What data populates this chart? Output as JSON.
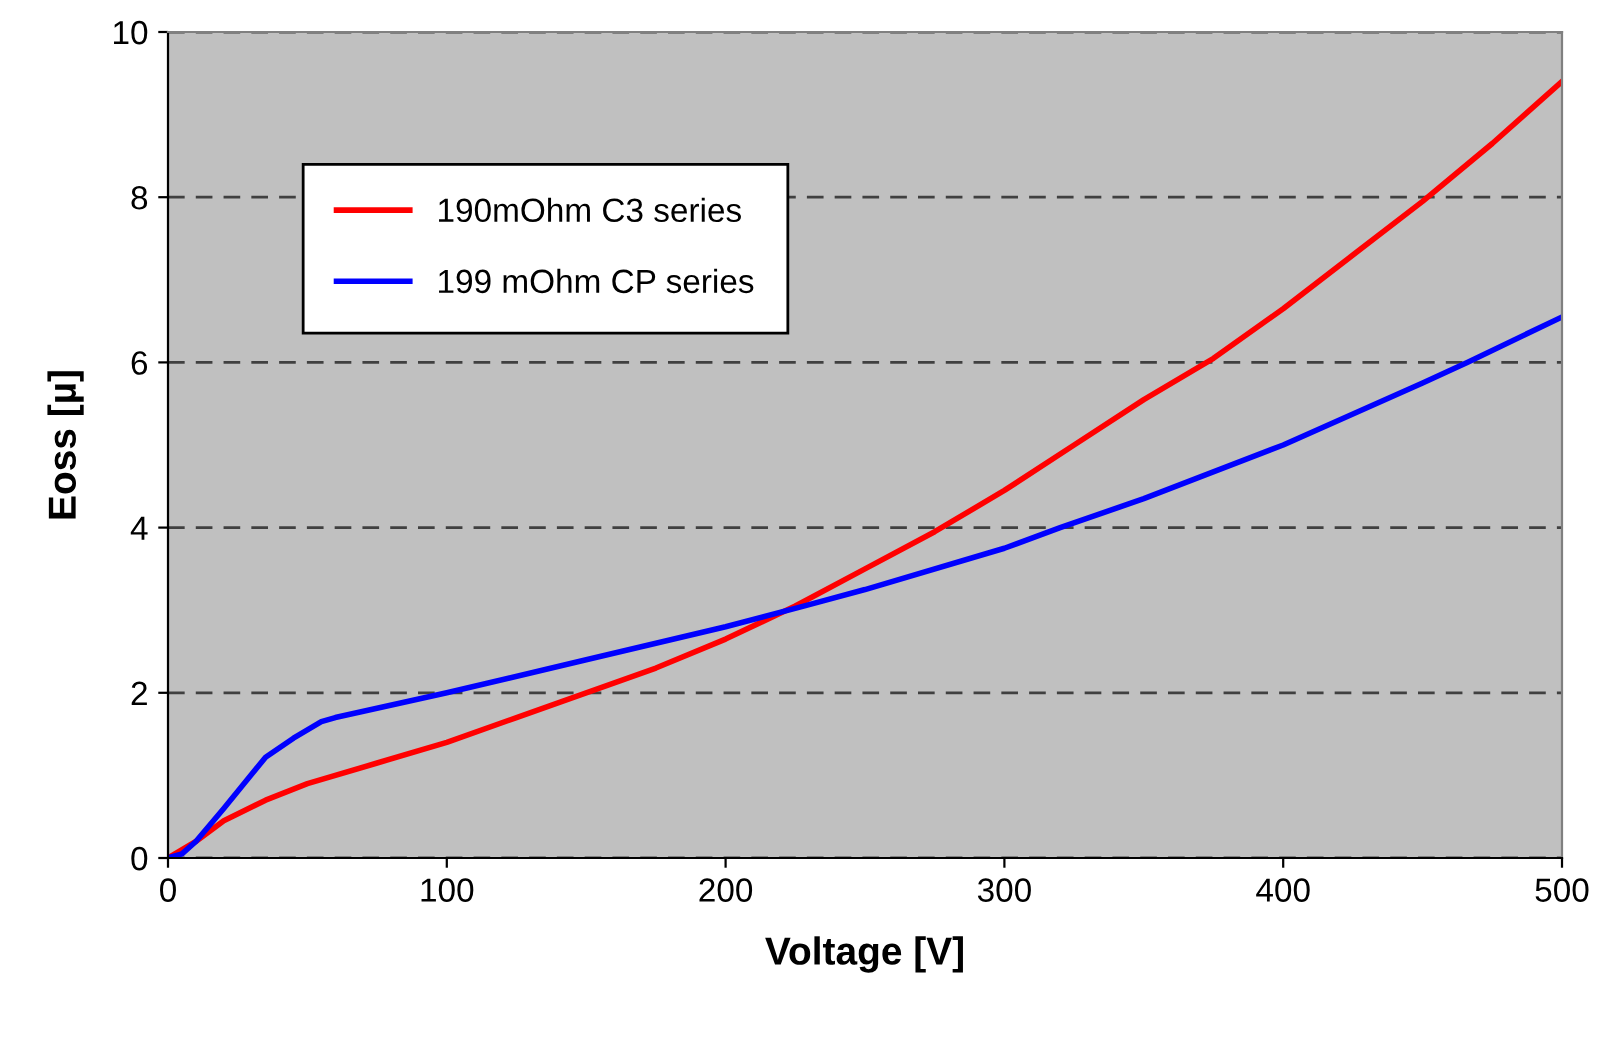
{
  "chart_data": {
    "type": "line",
    "xlabel": "Voltage [V]",
    "ylabel": "Eoss [µ]",
    "xlim": [
      0,
      500
    ],
    "ylim": [
      0,
      10
    ],
    "xticks": [
      0,
      100,
      200,
      300,
      400,
      500
    ],
    "yticks": [
      0,
      2,
      4,
      6,
      8,
      10
    ],
    "grid": "y",
    "legend": "top left",
    "marker": "none",
    "line_style": "solid",
    "series": [
      {
        "name": "190mOhm C3 series",
        "color": "#ff0000",
        "x": [
          0,
          10,
          20,
          35,
          50,
          75,
          100,
          125,
          150,
          175,
          200,
          225,
          250,
          275,
          300,
          325,
          350,
          375,
          400,
          425,
          450,
          475,
          500
        ],
        "values": [
          0,
          0.2,
          0.45,
          0.7,
          0.9,
          1.15,
          1.4,
          1.7,
          2.0,
          2.3,
          2.65,
          3.05,
          3.5,
          3.95,
          4.45,
          5.0,
          5.55,
          6.05,
          6.65,
          7.3,
          7.95,
          8.65,
          9.4
        ]
      },
      {
        "name": "199 mOhm CP series",
        "color": "#0000ff",
        "x": [
          0,
          5,
          10,
          20,
          35,
          45,
          55,
          60,
          100,
          150,
          200,
          228,
          250,
          300,
          320,
          350,
          400,
          450,
          466,
          500
        ],
        "values": [
          0,
          0.05,
          0.2,
          0.6,
          1.22,
          1.45,
          1.65,
          1.7,
          2.0,
          2.4,
          2.8,
          3.05,
          3.25,
          3.75,
          4.0,
          4.35,
          5.0,
          5.75,
          6.0,
          6.55
        ]
      }
    ]
  }
}
